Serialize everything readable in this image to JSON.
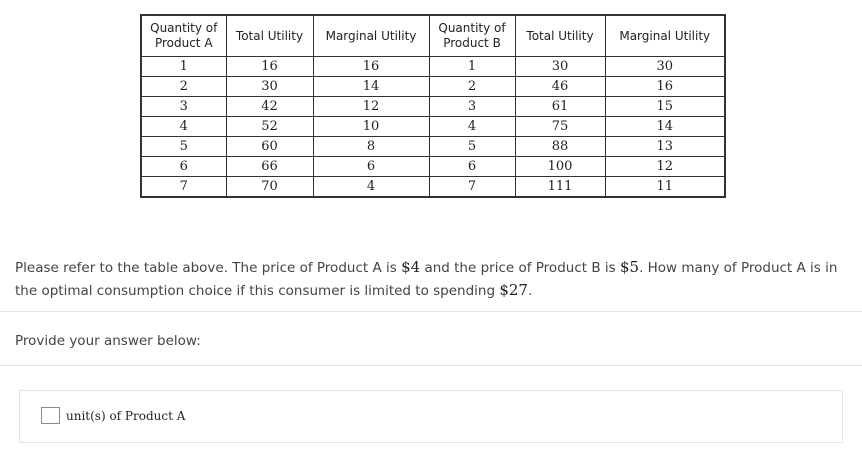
{
  "table": {
    "headers": [
      "Quantity of Product A",
      "Total Utility",
      "Marginal Utility",
      "Quantity of Product B",
      "Total Utility",
      "Marginal Utility"
    ],
    "rows": [
      [
        "1",
        "16",
        "16",
        "1",
        "30",
        "30"
      ],
      [
        "2",
        "30",
        "14",
        "2",
        "46",
        "16"
      ],
      [
        "3",
        "42",
        "12",
        "3",
        "61",
        "15"
      ],
      [
        "4",
        "52",
        "10",
        "4",
        "75",
        "14"
      ],
      [
        "5",
        "60",
        "8",
        "5",
        "88",
        "13"
      ],
      [
        "6",
        "66",
        "6",
        "6",
        "100",
        "12"
      ],
      [
        "7",
        "70",
        "4",
        "7",
        "111",
        "11"
      ]
    ]
  },
  "question": {
    "part1": "Please refer to the table above. The price of Product A is ",
    "price_a": "$4",
    "part2": " and the price of Product B is ",
    "price_b": "$5",
    "part3": ". How many of Product A is in the optimal consumption choice if this consumer is limited to spending ",
    "budget": "$27",
    "part4": "."
  },
  "answer": {
    "prompt": "Provide your answer below:",
    "input_value": "",
    "unit_label": "unit(s) of Product A"
  }
}
